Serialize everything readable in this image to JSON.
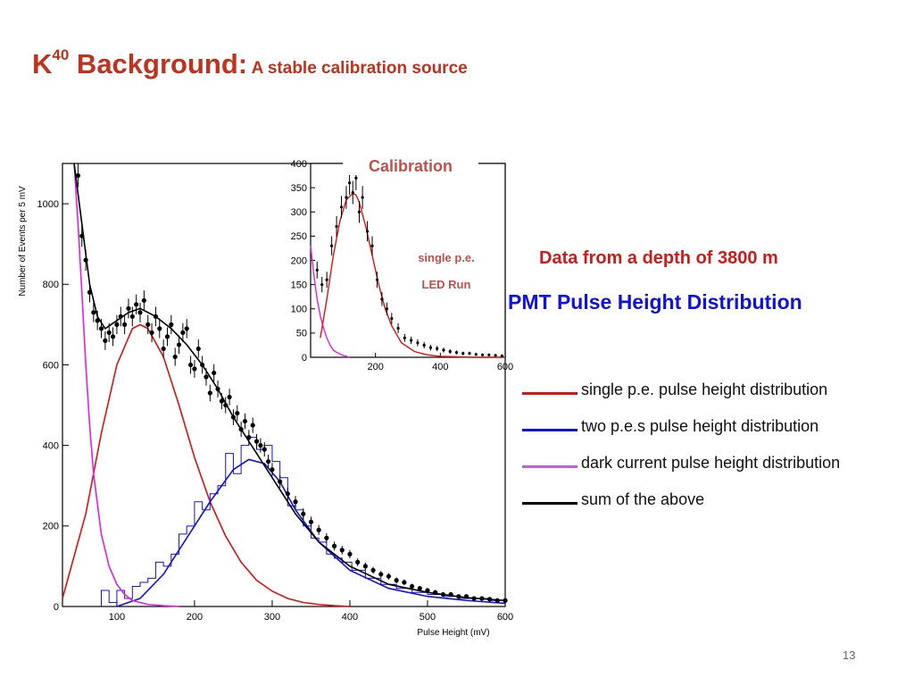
{
  "slide": {
    "title_main": "K",
    "title_sup": "40",
    "title_rest": " Background:",
    "title_sub": "A stable calibration source",
    "depth_label": "Data from a depth of 3800 m",
    "pmt_label": "PMT Pulse Height  Distribution",
    "page_number": "13"
  },
  "legend": [
    {
      "label": "single p.e. pulse height  distribution",
      "color": "#E01010"
    },
    {
      "label": "two p.e.s pulse height distribution",
      "color": "#1010E0"
    },
    {
      "label": "dark current pulse height distribution",
      "color": "#C060E0"
    },
    {
      "label": "sum of the above",
      "color": "#000000"
    }
  ],
  "chart_data": [
    {
      "type": "line",
      "xlabel": "Pulse Height (mV)",
      "ylabel": "Number of Events per 5 mV",
      "xlim": [
        30,
        600
      ],
      "ylim": [
        0,
        1100
      ],
      "xticks": [
        100,
        200,
        300,
        400,
        500,
        600
      ],
      "yticks": [
        0,
        200,
        400,
        600,
        800,
        1000
      ],
      "grid": false,
      "series": [
        {
          "key": "single_pe_fit",
          "color": "#E01010",
          "x": [
            30,
            60,
            80,
            100,
            120,
            130,
            140,
            160,
            180,
            200,
            220,
            240,
            260,
            280,
            300,
            320,
            340,
            360,
            380,
            400
          ],
          "y": [
            20,
            230,
            430,
            600,
            690,
            700,
            690,
            620,
            500,
            370,
            260,
            175,
            110,
            65,
            38,
            20,
            10,
            5,
            2,
            0
          ]
        },
        {
          "key": "two_pe_fit",
          "color": "#1010E0",
          "x": [
            100,
            130,
            160,
            190,
            220,
            250,
            270,
            290,
            310,
            330,
            360,
            400,
            450,
            500,
            550,
            600
          ],
          "y": [
            0,
            20,
            80,
            170,
            260,
            340,
            365,
            355,
            310,
            240,
            160,
            90,
            45,
            25,
            15,
            8
          ]
        },
        {
          "key": "two_pe_histogram",
          "color": "#1010E0",
          "x": [
            85,
            95,
            105,
            115,
            125,
            135,
            145,
            155,
            165,
            175,
            185,
            195,
            205,
            215,
            225,
            235,
            245,
            255,
            265,
            275,
            285,
            295,
            305,
            315,
            325,
            335,
            345,
            355,
            365,
            375,
            385,
            395,
            410,
            430,
            450,
            470,
            490,
            510,
            530,
            550,
            570,
            590
          ],
          "y": [
            40,
            10,
            40,
            20,
            50,
            60,
            70,
            110,
            100,
            130,
            180,
            200,
            260,
            240,
            280,
            300,
            380,
            330,
            400,
            420,
            390,
            400,
            360,
            320,
            250,
            240,
            200,
            170,
            160,
            130,
            120,
            110,
            90,
            70,
            55,
            45,
            35,
            30,
            25,
            20,
            20,
            15
          ]
        },
        {
          "key": "dark_current_fit",
          "color": "#E020E0",
          "x": [
            45,
            50,
            55,
            60,
            65,
            70,
            80,
            90,
            100,
            110,
            120,
            140,
            160,
            180
          ],
          "y": [
            1100,
            950,
            780,
            600,
            450,
            330,
            180,
            100,
            55,
            30,
            15,
            5,
            2,
            0
          ]
        },
        {
          "key": "sum_fit",
          "color": "#000000",
          "x": [
            45,
            55,
            65,
            75,
            85,
            100,
            115,
            130,
            150,
            170,
            190,
            210,
            230,
            250,
            270,
            290,
            310,
            330,
            360,
            400,
            450,
            500,
            550,
            600
          ],
          "y": [
            1100,
            950,
            800,
            720,
            690,
            710,
            730,
            740,
            720,
            690,
            650,
            600,
            540,
            470,
            410,
            350,
            290,
            230,
            160,
            100,
            55,
            35,
            22,
            15
          ]
        },
        {
          "key": "data_points",
          "color": "#000000",
          "x": [
            50,
            55,
            60,
            65,
            70,
            75,
            80,
            85,
            90,
            95,
            100,
            105,
            110,
            115,
            120,
            125,
            130,
            135,
            140,
            145,
            150,
            155,
            160,
            165,
            170,
            175,
            180,
            185,
            190,
            195,
            200,
            205,
            210,
            215,
            220,
            225,
            230,
            235,
            240,
            245,
            250,
            255,
            260,
            265,
            270,
            275,
            280,
            285,
            290,
            295,
            300,
            310,
            320,
            330,
            340,
            350,
            360,
            370,
            380,
            390,
            400,
            410,
            420,
            430,
            440,
            450,
            460,
            470,
            480,
            490,
            500,
            510,
            520,
            530,
            540,
            550,
            560,
            570,
            580,
            590,
            600
          ],
          "y": [
            1070,
            920,
            860,
            780,
            730,
            710,
            690,
            660,
            680,
            670,
            700,
            720,
            700,
            740,
            720,
            750,
            730,
            760,
            700,
            680,
            720,
            690,
            640,
            670,
            700,
            620,
            650,
            680,
            690,
            600,
            590,
            640,
            600,
            570,
            530,
            580,
            540,
            510,
            500,
            520,
            470,
            480,
            440,
            460,
            420,
            450,
            410,
            400,
            390,
            360,
            340,
            310,
            280,
            260,
            230,
            210,
            190,
            170,
            150,
            140,
            130,
            110,
            100,
            90,
            80,
            75,
            65,
            60,
            50,
            45,
            40,
            35,
            30,
            30,
            25,
            25,
            20,
            20,
            18,
            15,
            15
          ]
        }
      ]
    },
    {
      "type": "line",
      "title": "Calibration",
      "annotations": [
        "single p.e.",
        "LED Run"
      ],
      "xlim": [
        0,
        600
      ],
      "ylim": [
        0,
        400
      ],
      "xticks": [
        200,
        400,
        600
      ],
      "yticks": [
        0,
        50,
        100,
        150,
        200,
        250,
        300,
        350,
        400
      ],
      "grid": false,
      "series": [
        {
          "key": "dark_current",
          "color": "#E020E0",
          "x": [
            0,
            10,
            20,
            30,
            40,
            50,
            60,
            70,
            80,
            100,
            120
          ],
          "y": [
            230,
            170,
            120,
            85,
            60,
            40,
            25,
            15,
            10,
            4,
            0
          ]
        },
        {
          "key": "single_pe_fit",
          "color": "#E01010",
          "x": [
            30,
            50,
            70,
            90,
            110,
            130,
            140,
            150,
            170,
            190,
            210,
            230,
            250,
            280,
            320,
            360,
            400,
            450,
            500,
            550,
            600
          ],
          "y": [
            40,
            120,
            210,
            280,
            325,
            338,
            335,
            320,
            270,
            210,
            150,
            100,
            65,
            30,
            12,
            5,
            2,
            1,
            0,
            0,
            0
          ]
        },
        {
          "key": "data_points",
          "color": "#000000",
          "x": [
            20,
            35,
            50,
            65,
            80,
            95,
            110,
            120,
            130,
            140,
            150,
            160,
            175,
            190,
            205,
            220,
            235,
            250,
            270,
            290,
            310,
            330,
            350,
            370,
            390,
            410,
            430,
            450,
            470,
            490,
            510,
            530,
            550,
            570,
            590
          ],
          "y": [
            180,
            150,
            160,
            230,
            270,
            310,
            330,
            360,
            340,
            370,
            300,
            330,
            260,
            230,
            160,
            120,
            100,
            80,
            60,
            40,
            35,
            30,
            25,
            20,
            18,
            15,
            12,
            10,
            8,
            8,
            6,
            5,
            5,
            4,
            3
          ]
        }
      ]
    }
  ]
}
